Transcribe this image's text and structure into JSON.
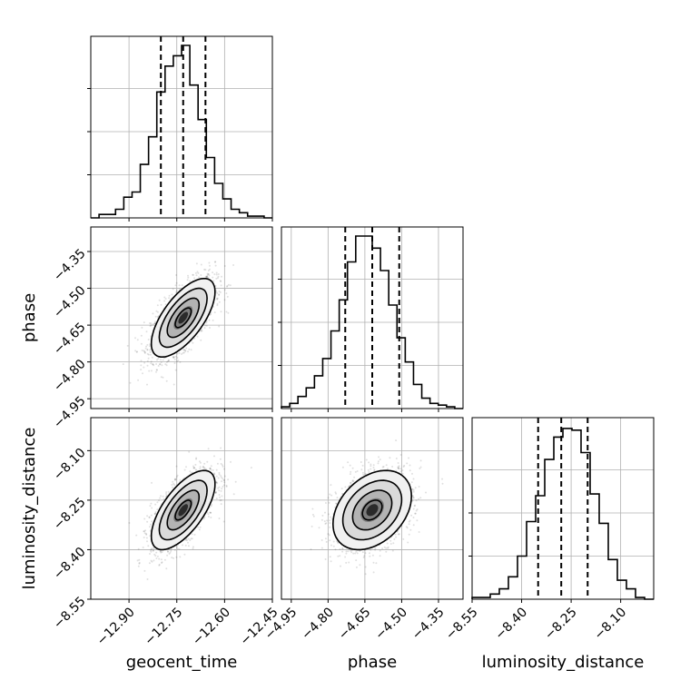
{
  "chart_data": {
    "type": "corner",
    "grid": true,
    "parameters": [
      {
        "name": "geocent_time",
        "label": "geocent_time",
        "range": [
          -13.02,
          -12.45
        ],
        "ticks": [
          -12.9,
          -12.75,
          -12.6,
          -12.45
        ],
        "tick_labels": [
          "−12.90",
          "−12.75",
          "−12.60",
          "−12.45"
        ],
        "quantiles": [
          -12.8,
          -12.73,
          -12.66
        ],
        "hist": [
          0,
          0.02,
          0.02,
          0.05,
          0.12,
          0.15,
          0.31,
          0.47,
          0.73,
          0.88,
          0.94,
          1.0,
          0.77,
          0.57,
          0.35,
          0.2,
          0.11,
          0.05,
          0.03,
          0.01,
          0.01,
          0
        ]
      },
      {
        "name": "phase",
        "label": "phase",
        "range": [
          -4.99,
          -4.25
        ],
        "ticks": [
          -4.95,
          -4.8,
          -4.65,
          -4.5,
          -4.35
        ],
        "tick_labels": [
          "−4.95",
          "−4.80",
          "−4.65",
          "−4.50",
          "−4.35"
        ],
        "quantiles": [
          -4.73,
          -4.62,
          -4.51
        ],
        "hist": [
          0.01,
          0.03,
          0.07,
          0.12,
          0.19,
          0.29,
          0.45,
          0.63,
          0.85,
          1.0,
          1.0,
          0.93,
          0.8,
          0.6,
          0.41,
          0.27,
          0.14,
          0.06,
          0.03,
          0.02,
          0.01,
          0
        ]
      },
      {
        "name": "luminosity_distance",
        "label": "luminosity_distance",
        "range": [
          -8.55,
          -8.0
        ],
        "ticks": [
          -8.55,
          -8.4,
          -8.25,
          -8.1
        ],
        "tick_labels": [
          "−8.55",
          "−8.40",
          "−8.25",
          "−8.10"
        ],
        "quantiles": [
          -8.35,
          -8.28,
          -8.2
        ],
        "hist": [
          0.01,
          0.01,
          0.03,
          0.06,
          0.13,
          0.25,
          0.45,
          0.6,
          0.81,
          0.94,
          0.99,
          0.98,
          0.85,
          0.61,
          0.44,
          0.23,
          0.11,
          0.06,
          0.01,
          0
        ]
      }
    ],
    "pairs": [
      {
        "x": "geocent_time",
        "y": "phase",
        "mean": [
          -12.73,
          -4.62
        ],
        "sd": [
          0.05,
          0.08
        ],
        "corr": 0.66
      },
      {
        "x": "geocent_time",
        "y": "luminosity_distance",
        "mean": [
          -12.73,
          -8.28
        ],
        "sd": [
          0.05,
          0.06
        ],
        "corr": 0.66
      },
      {
        "x": "phase",
        "y": "luminosity_distance",
        "mean": [
          -4.62,
          -8.28
        ],
        "sd": [
          0.08,
          0.06
        ],
        "corr": 0.35
      }
    ]
  }
}
